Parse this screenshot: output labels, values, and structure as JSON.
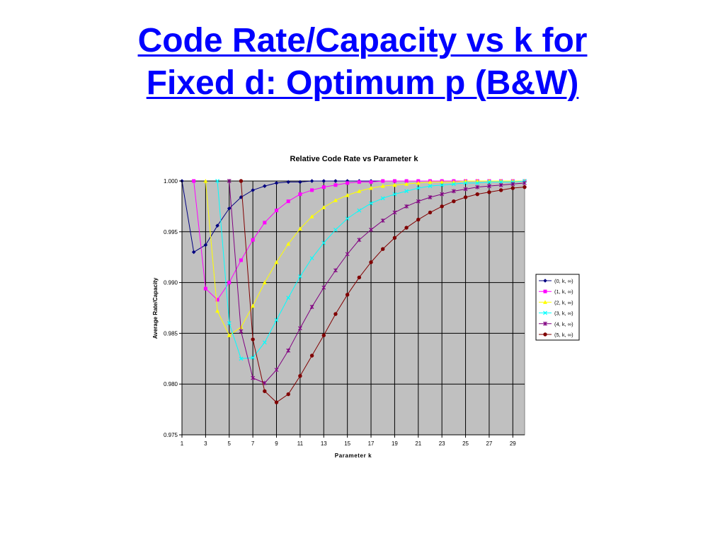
{
  "slide": {
    "title_line1": "Code Rate/Capacity vs k for",
    "title_line2": "Fixed d: Optimum p (B&W)"
  },
  "chart_data": {
    "type": "line",
    "title": "Relative Code Rate vs Parameter k",
    "xlabel": "Parameter k",
    "ylabel": "Average Rate/Capacity",
    "xlim": [
      1,
      30
    ],
    "ylim": [
      0.975,
      1.0
    ],
    "x_ticks": [
      1,
      3,
      5,
      7,
      9,
      11,
      13,
      15,
      17,
      19,
      21,
      23,
      25,
      27,
      29
    ],
    "y_ticks": [
      0.975,
      0.98,
      0.985,
      0.99,
      0.995,
      1.0
    ],
    "y_tick_labels": [
      "0.975",
      "0.980",
      "0.985",
      "0.990",
      "0.995",
      "1.000"
    ],
    "grid": true,
    "plot_background": "#c0c0c0",
    "legend_position": "right",
    "series": [
      {
        "name": "(0, k, ∞)",
        "color": "#000080",
        "marker": "diamond",
        "x": [
          1,
          2,
          3,
          4,
          5,
          6,
          7,
          8,
          9,
          10,
          11,
          12,
          13,
          14,
          15,
          16,
          17,
          18,
          19,
          20,
          21,
          22,
          23,
          24,
          25,
          26,
          27,
          28,
          29,
          30
        ],
        "y": [
          1.0,
          0.993,
          0.9937,
          0.9956,
          0.9973,
          0.9984,
          0.9991,
          0.9995,
          0.9998,
          0.9999,
          0.9999,
          1.0,
          1.0,
          1.0,
          1.0,
          1.0,
          1.0,
          1.0,
          1.0,
          1.0,
          1.0,
          1.0,
          1.0,
          1.0,
          1.0,
          1.0,
          1.0,
          1.0,
          1.0,
          1.0
        ]
      },
      {
        "name": "(1, k, ∞)",
        "color": "#ff00ff",
        "marker": "square",
        "x": [
          2,
          3,
          4,
          5,
          6,
          7,
          8,
          9,
          10,
          11,
          12,
          13,
          14,
          15,
          16,
          17,
          18,
          19,
          20,
          21,
          22,
          23,
          24,
          25,
          26,
          27,
          28,
          29,
          30
        ],
        "y": [
          1.0,
          0.9894,
          0.9883,
          0.99,
          0.9922,
          0.9942,
          0.9959,
          0.9971,
          0.998,
          0.9987,
          0.9991,
          0.9994,
          0.9996,
          0.9998,
          0.9999,
          0.9999,
          1.0,
          1.0,
          1.0,
          1.0,
          1.0,
          1.0,
          1.0,
          1.0,
          1.0,
          1.0,
          1.0,
          1.0,
          1.0
        ]
      },
      {
        "name": "(2, k, ∞)",
        "color": "#ffff00",
        "marker": "triangle",
        "x": [
          3,
          4,
          5,
          6,
          7,
          8,
          9,
          10,
          11,
          12,
          13,
          14,
          15,
          16,
          17,
          18,
          19,
          20,
          21,
          22,
          23,
          24,
          25,
          26,
          27,
          28,
          29,
          30
        ],
        "y": [
          1.0,
          0.9872,
          0.9848,
          0.9856,
          0.9877,
          0.99,
          0.992,
          0.9938,
          0.9953,
          0.9965,
          0.9974,
          0.9981,
          0.9986,
          0.999,
          0.9993,
          0.9995,
          0.9996,
          0.9997,
          0.9998,
          0.9999,
          0.9999,
          0.9999,
          1.0,
          1.0,
          1.0,
          1.0,
          1.0,
          1.0
        ]
      },
      {
        "name": "(3, k, ∞)",
        "color": "#00ffff",
        "marker": "x",
        "x": [
          4,
          5,
          6,
          7,
          8,
          9,
          10,
          11,
          12,
          13,
          14,
          15,
          16,
          17,
          18,
          19,
          20,
          21,
          22,
          23,
          24,
          25,
          26,
          27,
          28,
          29,
          30
        ],
        "y": [
          1.0,
          0.986,
          0.9825,
          0.9826,
          0.9841,
          0.9863,
          0.9885,
          0.9906,
          0.9924,
          0.9939,
          0.9952,
          0.9963,
          0.9971,
          0.9978,
          0.9983,
          0.9987,
          0.999,
          0.9993,
          0.9995,
          0.9996,
          0.9997,
          0.9998,
          0.9998,
          0.9999,
          0.9999,
          0.9999,
          1.0
        ]
      },
      {
        "name": "(4, k, ∞)",
        "color": "#800080",
        "marker": "star",
        "x": [
          5,
          6,
          7,
          8,
          9,
          10,
          11,
          12,
          13,
          14,
          15,
          16,
          17,
          18,
          19,
          20,
          21,
          22,
          23,
          24,
          25,
          26,
          27,
          28,
          29,
          30
        ],
        "y": [
          1.0,
          0.9852,
          0.9806,
          0.9801,
          0.9814,
          0.9833,
          0.9855,
          0.9876,
          0.9895,
          0.9912,
          0.9928,
          0.9942,
          0.9952,
          0.9961,
          0.9969,
          0.9975,
          0.998,
          0.9984,
          0.9987,
          0.999,
          0.9992,
          0.9994,
          0.9995,
          0.9996,
          0.9997,
          0.9998
        ]
      },
      {
        "name": "(5, k, ∞)",
        "color": "#800000",
        "marker": "circle",
        "x": [
          6,
          7,
          8,
          9,
          10,
          11,
          12,
          13,
          14,
          15,
          16,
          17,
          18,
          19,
          20,
          21,
          22,
          23,
          24,
          25,
          26,
          27,
          28,
          29,
          30
        ],
        "y": [
          1.0,
          0.9844,
          0.9793,
          0.9782,
          0.979,
          0.9808,
          0.9828,
          0.9848,
          0.9869,
          0.9888,
          0.9905,
          0.992,
          0.9933,
          0.9944,
          0.9954,
          0.9962,
          0.9969,
          0.9975,
          0.998,
          0.9984,
          0.9987,
          0.9989,
          0.9991,
          0.9993,
          0.9994
        ]
      }
    ]
  }
}
